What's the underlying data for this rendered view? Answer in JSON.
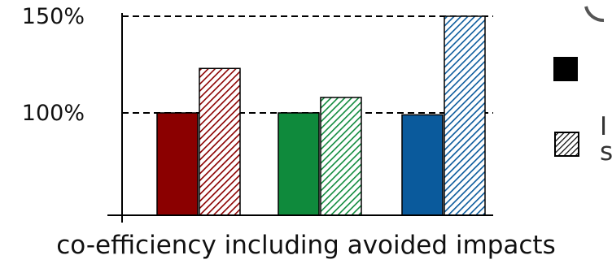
{
  "chart_data": {
    "type": "bar",
    "categories": [
      "",
      "",
      ""
    ],
    "series": [
      {
        "values": [
          100,
          100,
          99
        ],
        "pattern": "solid"
      },
      {
        "values": [
          123,
          108,
          150
        ],
        "pattern": "hatched"
      }
    ],
    "colors": [
      "#8b0000",
      "#0f8a3c",
      "#0a5a9c"
    ],
    "yticks": [
      {
        "value": 100,
        "label": "100%"
      },
      {
        "value": 150,
        "label": "150%"
      }
    ],
    "ylim": [
      50,
      150
    ],
    "reference_lines": [
      100,
      150
    ],
    "xlabel": "co-efficiency including avoided impacts",
    "legend": {
      "placement": "right",
      "items": [
        {
          "swatch": "solid",
          "label": ""
        },
        {
          "swatch": "hatched",
          "label": ""
        }
      ],
      "partial_text": [
        "I",
        "s"
      ]
    }
  }
}
